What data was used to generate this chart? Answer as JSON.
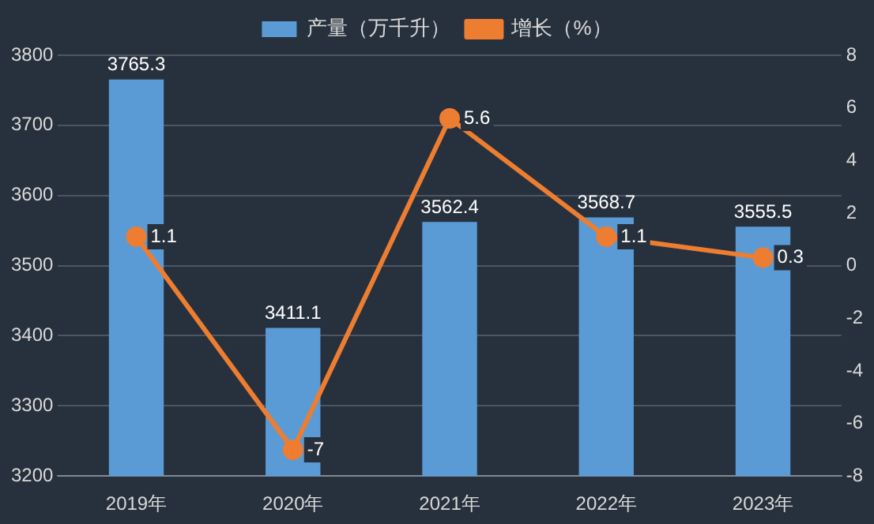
{
  "chart_data": {
    "type": "bar",
    "categories": [
      "2019年",
      "2020年",
      "2021年",
      "2022年",
      "2023年"
    ],
    "series": [
      {
        "name": "产量（万千升）",
        "color": "#5b9bd5",
        "values": [
          3765.3,
          3411.1,
          3562.4,
          3568.7,
          3555.5
        ]
      },
      {
        "name": "增长（%）",
        "type": "line",
        "axis": "y2",
        "color": "#ed7d31",
        "values": [
          1.1,
          -7,
          5.6,
          1.1,
          0.3
        ]
      }
    ],
    "ylim": [
      3200,
      3800
    ],
    "yticks": [
      3200,
      3300,
      3400,
      3500,
      3600,
      3700,
      3800
    ],
    "y2lim": [
      -8,
      8
    ],
    "y2ticks": [
      -8,
      -6,
      -4,
      -2,
      0,
      2,
      4,
      6,
      8
    ],
    "grid": "y",
    "legend": "top",
    "marker": "circle",
    "line_style": "solid",
    "data_labels": true
  }
}
